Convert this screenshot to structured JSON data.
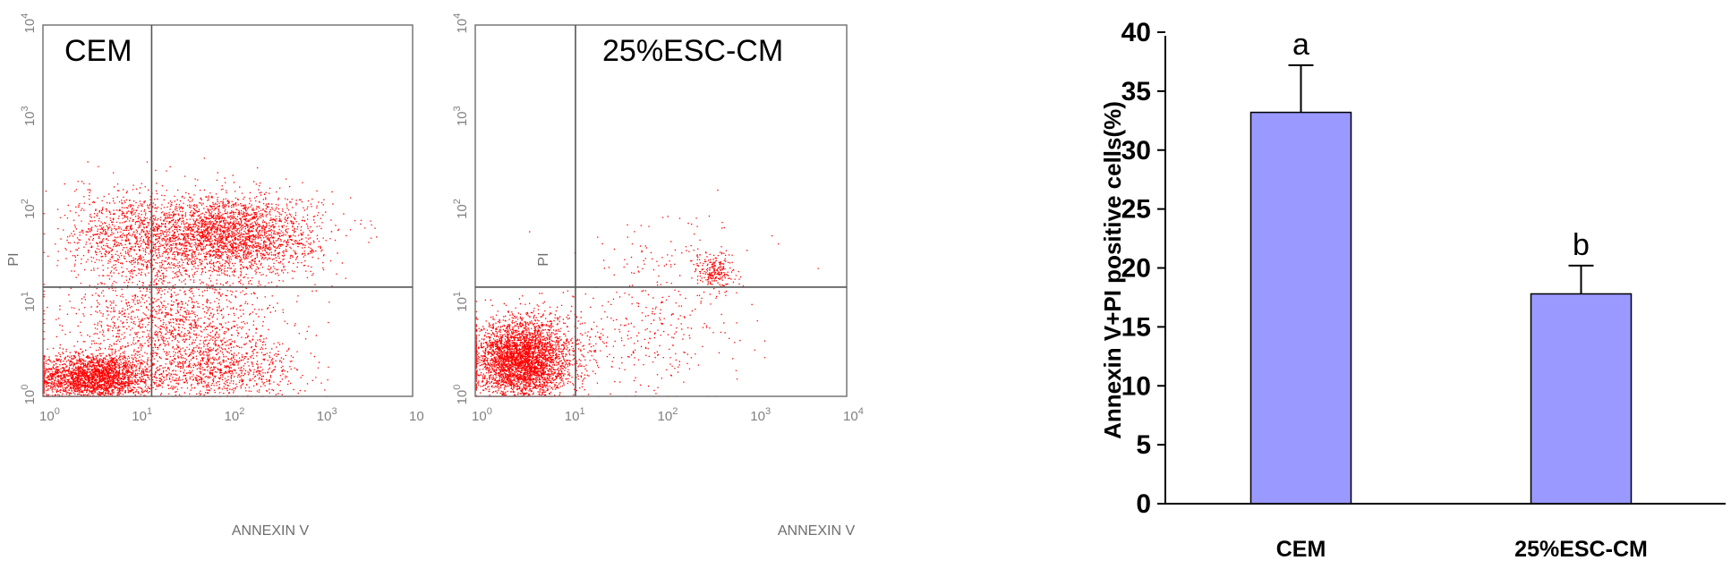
{
  "chart_data": [
    {
      "type": "scatter",
      "panel_label": "CEM",
      "xlabel": "ANNEXIN V",
      "ylabel": "PI",
      "x_scale": "log",
      "y_scale": "log",
      "xlim": [
        1,
        10000
      ],
      "ylim": [
        1,
        10000
      ],
      "x_ticks": [
        {
          "base": "10",
          "exp": "0"
        },
        {
          "base": "10",
          "exp": "1"
        },
        {
          "base": "10",
          "exp": "2"
        },
        {
          "base": "10",
          "exp": "3"
        },
        {
          "base": "10",
          "exp": ""
        }
      ],
      "y_ticks": [
        {
          "base": "10",
          "exp": "0"
        },
        {
          "base": "10",
          "exp": "1"
        },
        {
          "base": "10",
          "exp": "2"
        },
        {
          "base": "10",
          "exp": "3"
        },
        {
          "base": "10",
          "exp": "4"
        }
      ],
      "quadrant_gate": {
        "x": 15,
        "y": 15
      },
      "point_color": "#ff0000",
      "populations": [
        {
          "name": "annexin- / PI-",
          "center": [
            3.5,
            1.6
          ],
          "spread": [
            0.32,
            0.13
          ],
          "count": 2600
        },
        {
          "name": "annexin+ / PI-",
          "center": [
            80,
            1.9
          ],
          "spread": [
            0.45,
            0.18
          ],
          "count": 900
        },
        {
          "name": "annexin+ / PI+",
          "center": [
            90,
            55
          ],
          "spread": [
            0.5,
            0.22
          ],
          "count": 2900
        },
        {
          "name": "annexin- / PI+",
          "center": [
            7,
            55
          ],
          "spread": [
            0.3,
            0.25
          ],
          "count": 700
        },
        {
          "name": "diffuse",
          "center": [
            25,
            6
          ],
          "spread": [
            0.55,
            0.32
          ],
          "count": 1400
        }
      ]
    },
    {
      "type": "scatter",
      "panel_label": "25%ESC-CM",
      "xlabel": "ANNEXIN V",
      "ylabel": "PI",
      "x_scale": "log",
      "y_scale": "log",
      "xlim": [
        1,
        10000
      ],
      "ylim": [
        1,
        10000
      ],
      "x_ticks": [
        {
          "base": "10",
          "exp": "0"
        },
        {
          "base": "10",
          "exp": "1"
        },
        {
          "base": "10",
          "exp": "2"
        },
        {
          "base": "10",
          "exp": "3"
        },
        {
          "base": "10",
          "exp": "4"
        }
      ],
      "y_ticks": [
        {
          "base": "10",
          "exp": "0"
        },
        {
          "base": "10",
          "exp": "1"
        },
        {
          "base": "10",
          "exp": "2"
        },
        {
          "base": "10",
          "exp": "3"
        },
        {
          "base": "10",
          "exp": "4"
        }
      ],
      "quadrant_gate": {
        "x": 12,
        "y": 15
      },
      "point_color": "#ff0000",
      "populations": [
        {
          "name": "annexin- / PI-",
          "center": [
            3.2,
            2.5
          ],
          "spread": [
            0.26,
            0.22
          ],
          "count": 3800
        },
        {
          "name": "annexin+ / PI+",
          "center": [
            370,
            22
          ],
          "spread": [
            0.1,
            0.1
          ],
          "count": 220
        },
        {
          "name": "annexin+ / PI-",
          "center": [
            60,
            4
          ],
          "spread": [
            0.55,
            0.3
          ],
          "count": 320
        },
        {
          "name": "annexin+ / PI+ diffuse",
          "center": [
            150,
            30
          ],
          "spread": [
            0.45,
            0.3
          ],
          "count": 120
        }
      ]
    },
    {
      "type": "bar",
      "categories": [
        "CEM",
        "25%ESC-CM"
      ],
      "values": [
        33.2,
        17.8
      ],
      "errors": [
        4.0,
        2.4
      ],
      "letters": [
        "a",
        "b"
      ],
      "ylabel": "Annexin V+PI positive cells(%)",
      "ylim": [
        0,
        40
      ],
      "yticks": [
        0,
        5,
        10,
        15,
        20,
        25,
        30,
        35,
        40
      ],
      "bar_color": "#9999ff",
      "grid": false
    }
  ]
}
